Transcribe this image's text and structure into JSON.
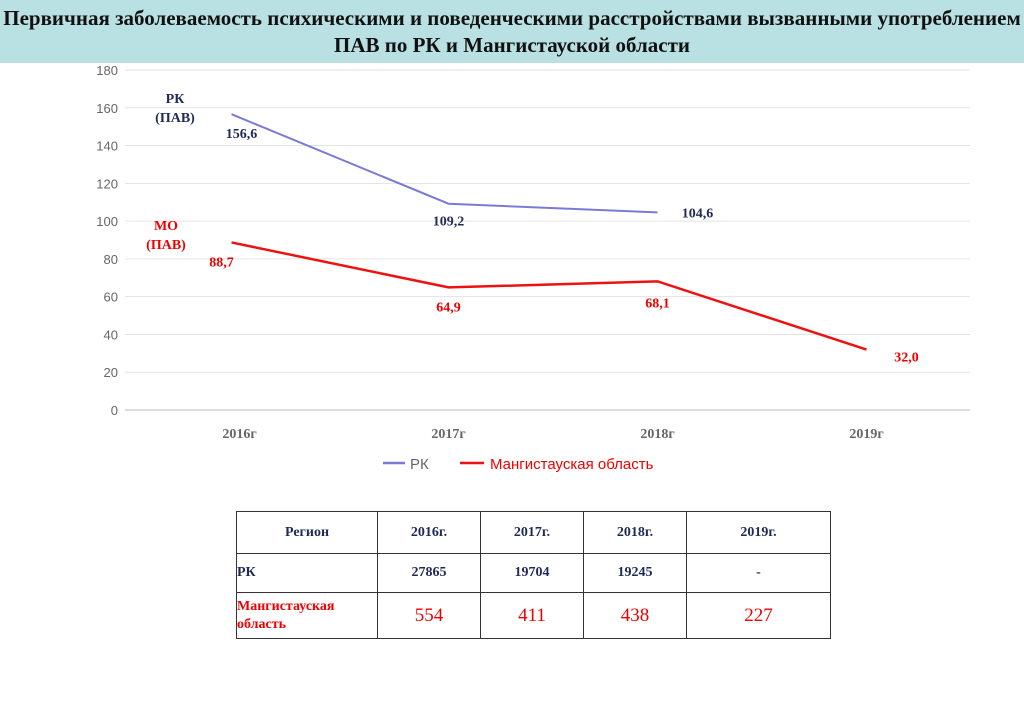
{
  "title": "Первичная заболеваемость психическими и поведенческими расстройствами вызванными употреблением ПАВ по РК и Мангистауской области",
  "chart_data": {
    "type": "line",
    "categories": [
      "2016г",
      "2017г",
      "2018г",
      "2019г"
    ],
    "ylim": [
      0,
      180
    ],
    "yticks": [
      0,
      20,
      40,
      60,
      80,
      100,
      120,
      140,
      160,
      180
    ],
    "grid": true,
    "legend": "bottom",
    "series": [
      {
        "name": "РК",
        "values": [
          156.6,
          109.2,
          104.6,
          null
        ],
        "labels": [
          "156,6",
          "109,2",
          "104,6",
          null
        ],
        "color": "#7b7bd6",
        "label_color": "#1f2a55",
        "tag": "РК\n(ПАВ)"
      },
      {
        "name": "Мангистауская область",
        "values": [
          88.7,
          64.9,
          68.1,
          32.0
        ],
        "labels": [
          "88,7",
          "64,9",
          "68,1",
          "32,0"
        ],
        "color": "#ee1111",
        "label_color": "#e00",
        "tag": "МО\n(ПАВ)"
      }
    ]
  },
  "table": {
    "headers": [
      "Регион",
      "2016г.",
      "2017г.",
      "2018г.",
      "2019г."
    ],
    "rows": [
      [
        "РК",
        "27865",
        "19704",
        "19245",
        "-"
      ],
      [
        "Мангистауская область",
        "554",
        "411",
        "438",
        "227"
      ]
    ]
  }
}
